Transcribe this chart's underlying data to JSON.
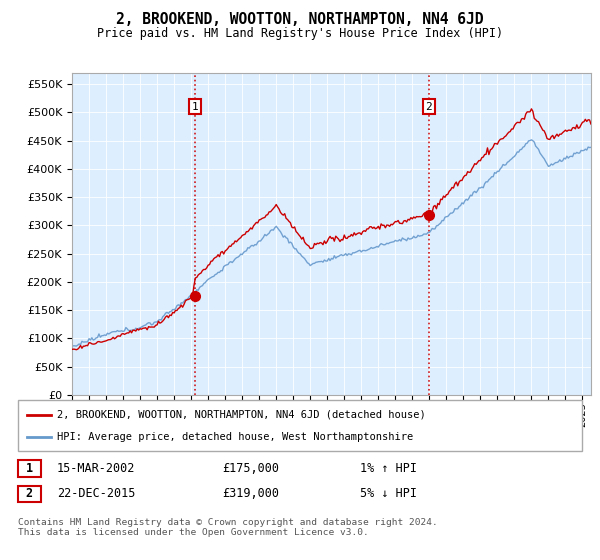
{
  "title": "2, BROOKEND, WOOTTON, NORTHAMPTON, NN4 6JD",
  "subtitle": "Price paid vs. HM Land Registry's House Price Index (HPI)",
  "ylabel_ticks": [
    "£0",
    "£50K",
    "£100K",
    "£150K",
    "£200K",
    "£250K",
    "£300K",
    "£350K",
    "£400K",
    "£450K",
    "£500K",
    "£550K"
  ],
  "ytick_values": [
    0,
    50000,
    100000,
    150000,
    200000,
    250000,
    300000,
    350000,
    400000,
    450000,
    500000,
    550000
  ],
  "ylim": [
    0,
    570000
  ],
  "sale1_year": 2002.21,
  "sale1_price": 175000,
  "sale2_year": 2015.97,
  "sale2_price": 319000,
  "legend_line1": "2, BROOKEND, WOOTTON, NORTHAMPTON, NN4 6JD (detached house)",
  "legend_line2": "HPI: Average price, detached house, West Northamptonshire",
  "sale1_label": "15-MAR-2002",
  "sale1_amount": "£175,000",
  "sale1_hpi": "1% ↑ HPI",
  "sale2_label": "22-DEC-2015",
  "sale2_amount": "£319,000",
  "sale2_hpi": "5% ↓ HPI",
  "footer": "Contains HM Land Registry data © Crown copyright and database right 2024.\nThis data is licensed under the Open Government Licence v3.0.",
  "line_color_red": "#cc0000",
  "line_color_blue": "#6699cc",
  "fill_color": "#ddeeff",
  "vline_color": "#cc0000",
  "grid_color": "#cccccc",
  "bg_color": "#ddeeff"
}
